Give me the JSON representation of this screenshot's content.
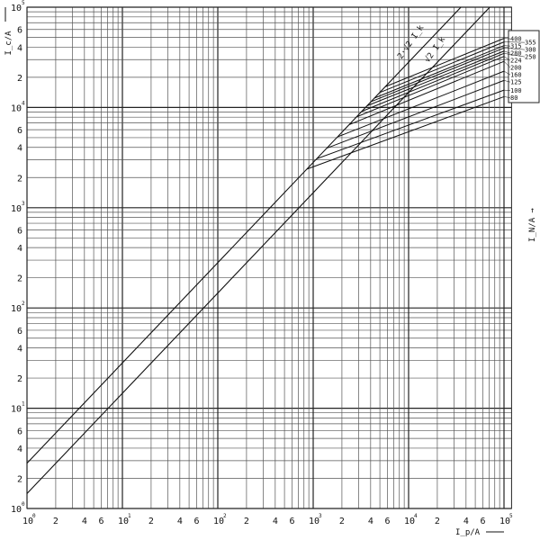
{
  "chart_data": {
    "type": "line",
    "title": "",
    "xlabel": "I_p/A",
    "ylabel": "I_c/A",
    "right_label": "I_N/A",
    "x_scale": "log",
    "y_scale": "log",
    "xlim": [
      1,
      120000
    ],
    "ylim": [
      1,
      100000
    ],
    "grid": true,
    "x_ticks": [
      {
        "v": 1,
        "base": "10",
        "exp": "0"
      },
      {
        "v": 2,
        "base": "2"
      },
      {
        "v": 4,
        "base": "4"
      },
      {
        "v": 6,
        "base": "6"
      },
      {
        "v": 10,
        "base": "10",
        "exp": "1"
      },
      {
        "v": 20,
        "base": "2"
      },
      {
        "v": 40,
        "base": "4"
      },
      {
        "v": 60,
        "base": "6"
      },
      {
        "v": 100,
        "base": "10",
        "exp": "2"
      },
      {
        "v": 200,
        "base": "2"
      },
      {
        "v": 400,
        "base": "4"
      },
      {
        "v": 600,
        "base": "6"
      },
      {
        "v": 1000,
        "base": "10",
        "exp": "3"
      },
      {
        "v": 2000,
        "base": "2"
      },
      {
        "v": 4000,
        "base": "4"
      },
      {
        "v": 6000,
        "base": "6"
      },
      {
        "v": 10000,
        "base": "10",
        "exp": "4"
      },
      {
        "v": 20000,
        "base": "2"
      },
      {
        "v": 40000,
        "base": "4"
      },
      {
        "v": 60000,
        "base": "6"
      },
      {
        "v": 100000,
        "base": "10",
        "exp": "5"
      }
    ],
    "y_ticks": [
      {
        "v": 1,
        "base": "10",
        "exp": "0"
      },
      {
        "v": 2,
        "base": "2"
      },
      {
        "v": 4,
        "base": "4"
      },
      {
        "v": 6,
        "base": "6"
      },
      {
        "v": 10,
        "base": "10",
        "exp": "1"
      },
      {
        "v": 20,
        "base": "2"
      },
      {
        "v": 40,
        "base": "4"
      },
      {
        "v": 60,
        "base": "6"
      },
      {
        "v": 100,
        "base": "10",
        "exp": "2"
      },
      {
        "v": 200,
        "base": "2"
      },
      {
        "v": 400,
        "base": "4"
      },
      {
        "v": 600,
        "base": "6"
      },
      {
        "v": 1000,
        "base": "10",
        "exp": "3"
      },
      {
        "v": 2000,
        "base": "2"
      },
      {
        "v": 4000,
        "base": "4"
      },
      {
        "v": 6000,
        "base": "6"
      },
      {
        "v": 10000,
        "base": "10",
        "exp": "4"
      },
      {
        "v": 20000,
        "base": "2"
      },
      {
        "v": 40000,
        "base": "4"
      },
      {
        "v": 60000,
        "base": "6"
      },
      {
        "v": 100000,
        "base": "10",
        "exp": "5"
      }
    ],
    "reference_lines": [
      {
        "name": "2·√2 I_k",
        "factor": 2.83
      },
      {
        "name": "√2 I_k",
        "factor": 1.41
      }
    ],
    "series": [
      {
        "name": "80",
        "points": [
          [
            860,
            2430
          ],
          [
            100000,
            12800
          ]
        ]
      },
      {
        "name": "100",
        "points": [
          [
            1090,
            3080
          ],
          [
            100000,
            14900
          ]
        ]
      },
      {
        "name": "125",
        "points": [
          [
            1390,
            3930
          ],
          [
            100000,
            18600
          ]
        ]
      },
      {
        "name": "160",
        "points": [
          [
            1800,
            5090
          ],
          [
            100000,
            23000
          ]
        ]
      },
      {
        "name": "200",
        "points": [
          [
            2380,
            6730
          ],
          [
            100000,
            28800
          ]
        ]
      },
      {
        "name": "224",
        "points": [
          [
            2840,
            8040
          ],
          [
            100000,
            32300
          ]
        ]
      },
      {
        "name": "250",
        "points": [
          [
            3230,
            9140
          ],
          [
            100000,
            34600
          ]
        ]
      },
      {
        "name": "280",
        "points": [
          [
            3680,
            10400
          ],
          [
            100000,
            36500
          ]
        ]
      },
      {
        "name": "300",
        "points": [
          [
            4020,
            11400
          ],
          [
            100000,
            39200
          ]
        ]
      },
      {
        "name": "315",
        "points": [
          [
            4380,
            12400
          ],
          [
            100000,
            41400
          ]
        ]
      },
      {
        "name": "355",
        "points": [
          [
            4990,
            14100
          ],
          [
            100000,
            45000
          ]
        ]
      },
      {
        "name": "400",
        "points": [
          [
            5690,
            16100
          ],
          [
            100000,
            48900
          ]
        ]
      }
    ],
    "legend_placement": "right"
  }
}
